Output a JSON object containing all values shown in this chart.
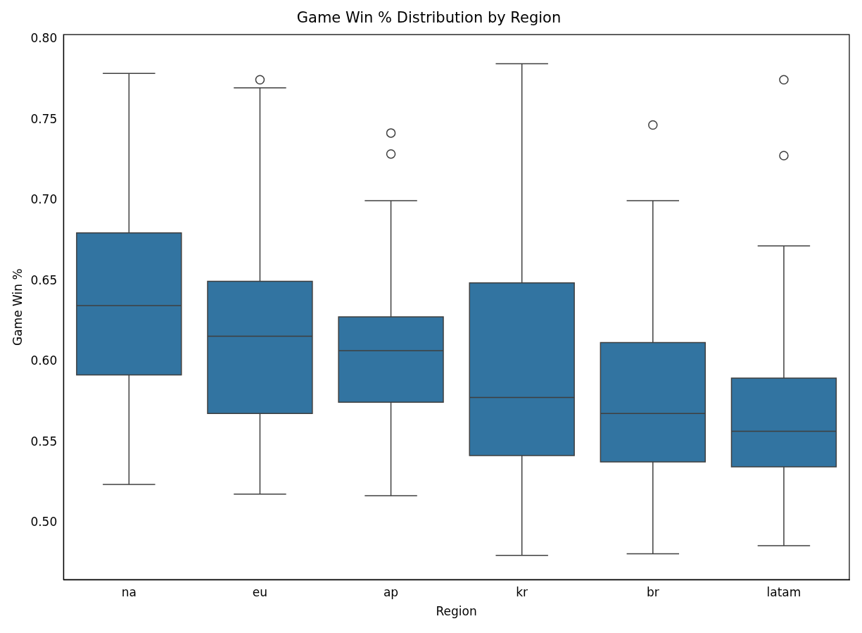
{
  "chart_data": {
    "type": "box",
    "title": "Game Win % Distribution by Region",
    "xlabel": "Region",
    "ylabel": "Game Win %",
    "categories": [
      "na",
      "eu",
      "ap",
      "kr",
      "br",
      "latam"
    ],
    "color": "#3274a1",
    "boxes": [
      {
        "low": 0.524,
        "q1": 0.592,
        "median": 0.635,
        "q3": 0.68,
        "high": 0.779
      },
      {
        "low": 0.518,
        "q1": 0.568,
        "median": 0.616,
        "q3": 0.65,
        "high": 0.77,
        "outliers": [
          0.775
        ]
      },
      {
        "low": 0.517,
        "q1": 0.575,
        "median": 0.607,
        "q3": 0.628,
        "high": 0.7,
        "outliers": [
          0.742,
          0.729
        ]
      },
      {
        "low": 0.48,
        "q1": 0.542,
        "median": 0.578,
        "q3": 0.649,
        "high": 0.785
      },
      {
        "low": 0.481,
        "q1": 0.538,
        "median": 0.568,
        "q3": 0.612,
        "high": 0.7,
        "outliers": [
          0.747
        ]
      },
      {
        "low": 0.486,
        "q1": 0.535,
        "median": 0.557,
        "q3": 0.59,
        "high": 0.672,
        "outliers": [
          0.775,
          0.728
        ]
      }
    ],
    "ylim": [
      0.465,
      0.803
    ],
    "yticks": [
      {
        "value": 0.5,
        "label": "0.50"
      },
      {
        "value": 0.55,
        "label": "0.55"
      },
      {
        "value": 0.6,
        "label": "0.60"
      },
      {
        "value": 0.65,
        "label": "0.65"
      },
      {
        "value": 0.7,
        "label": "0.70"
      },
      {
        "value": 0.75,
        "label": "0.75"
      },
      {
        "value": 0.8,
        "label": "0.80"
      }
    ]
  }
}
